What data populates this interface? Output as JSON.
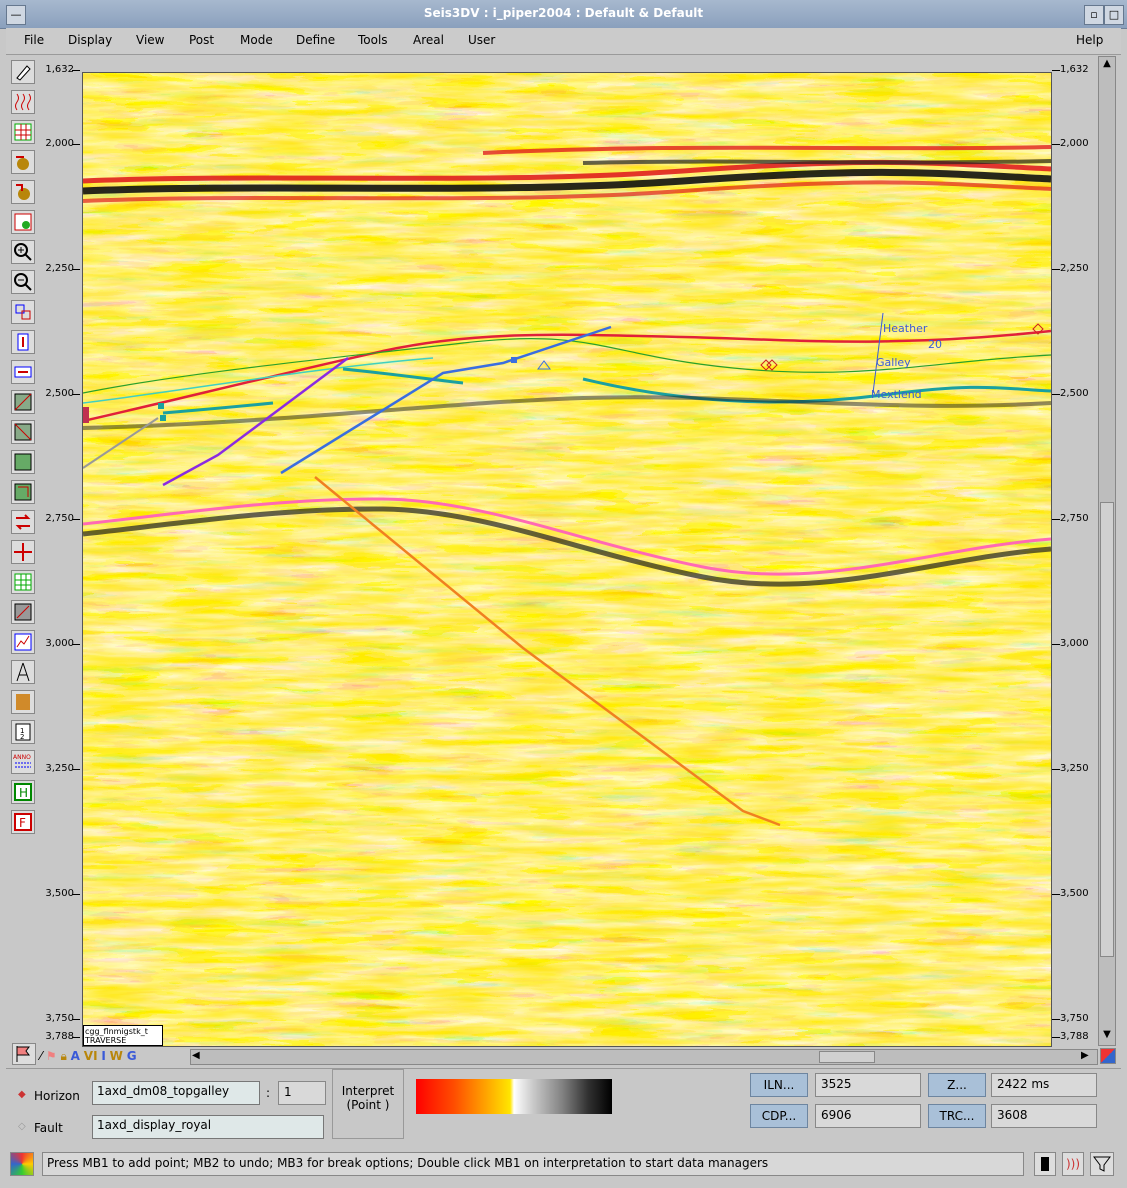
{
  "window": {
    "title": "Seis3DV : i_piper2004 : Default & Default"
  },
  "menu": {
    "items": [
      "File",
      "Display",
      "View",
      "Post",
      "Mode",
      "Define",
      "Tools",
      "Areal",
      "User"
    ],
    "help": "Help"
  },
  "axis": {
    "ticks": [
      "1,632",
      "2,000",
      "2,250",
      "2,500",
      "2,750",
      "3,000",
      "3,250",
      "3,500",
      "3,750",
      "3,788"
    ]
  },
  "seismic": {
    "labels": {
      "heather": "Heather",
      "galley": "Galley",
      "mextlend": "Mextlend",
      "num": "20"
    },
    "traverse_box": {
      "line1": "cgg_flnmigstk_t",
      "line2": "TRAVERSE"
    }
  },
  "bottom_tools": [
    "A",
    "VI",
    "I",
    "W",
    "G"
  ],
  "interp": {
    "horizon_label": "Horizon",
    "horizon_value": "1axd_dm08_topgalley",
    "horizon_num": "1",
    "fault_label": "Fault",
    "fault_value": "1axd_display_royal",
    "interpret_line1": "Interpret",
    "interpret_line2": "(Point )"
  },
  "readouts": {
    "iln_label": "ILN...",
    "iln_value": "3525",
    "z_label": "Z...",
    "z_value": "2422 ms",
    "cdp_label": "CDP...",
    "cdp_value": "6906",
    "trc_label": "TRC...",
    "trc_value": "3608"
  },
  "status": {
    "message": "Press MB1 to add point; MB2 to undo; MB3 for break options; Double click MB1 on interpretation to start data managers"
  },
  "colors": {
    "title_bar": "#8aa0bd",
    "horizon_red": "#e0203a",
    "fault_purple": "#8a2be2",
    "fault_blue": "#3a6ee0",
    "fault_orange": "#f08020",
    "horizon_pink": "#ff69b4",
    "horizon_teal": "#1aa0a0"
  }
}
